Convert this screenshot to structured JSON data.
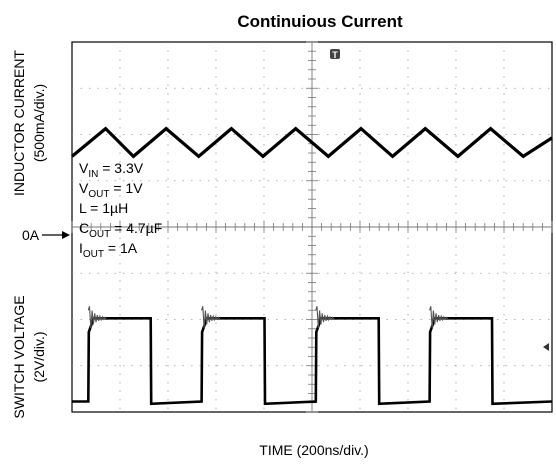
{
  "chart_data": {
    "type": "line",
    "title": "Continuious Current",
    "xlabel": "TIME (200ns/div.)",
    "ylabels": {
      "top": [
        "INDUCTOR CURRENT",
        "(500mA/div.)"
      ],
      "bottom": [
        "SWITCH VOLTAGE",
        "(2V/div.)"
      ]
    },
    "grid": true,
    "grid_divisions": {
      "x": 10,
      "y": 8
    },
    "x_range_divisions": [
      0,
      10
    ],
    "zero_marker": "0A",
    "conditions": [
      {
        "main": "V",
        "sub": "IN",
        "rest": " = 3.3V"
      },
      {
        "main": "V",
        "sub": "OUT",
        "rest": " = 1V"
      },
      {
        "main": "L = 1µH",
        "sub": "",
        "rest": ""
      },
      {
        "main": "C",
        "sub": "OUT",
        "rest": " = 4.7µF"
      },
      {
        "main": "I",
        "sub": "OUT",
        "rest": " = 1A"
      }
    ],
    "series": [
      {
        "name": "",
        "unit": "A",
        "x_div": [
          0,
          0.7,
          1.28,
          1.96,
          2.64,
          3.32,
          3.98,
          4.66,
          5.34,
          6.02,
          6.68,
          7.36,
          8.04,
          8.72,
          9.4,
          10
        ],
        "y": [
          0.85,
          1.15,
          0.85,
          1.15,
          0.85,
          1.15,
          0.85,
          1.15,
          0.85,
          1.15,
          0.85,
          1.15,
          0.85,
          1.15,
          0.85,
          1.05
        ]
      },
      {
        "name": "",
        "unit": "V",
        "x_div": [
          0,
          0.34,
          0.35,
          0.45,
          1.64,
          1.65,
          2.7,
          2.71,
          2.81,
          4.01,
          4.02,
          5.08,
          5.09,
          5.19,
          6.39,
          6.4,
          7.45,
          7.46,
          7.56,
          8.75,
          8.76,
          10
        ],
        "y": [
          -7.2,
          -7.2,
          -4.2,
          -3.6,
          -3.6,
          -7.3,
          -7.2,
          -4.2,
          -3.6,
          -3.6,
          -7.3,
          -7.2,
          -4.2,
          -3.6,
          -3.6,
          -7.3,
          -7.2,
          -4.2,
          -3.6,
          -3.6,
          -7.3,
          -7.2
        ]
      }
    ],
    "trigger_marker": "T"
  }
}
